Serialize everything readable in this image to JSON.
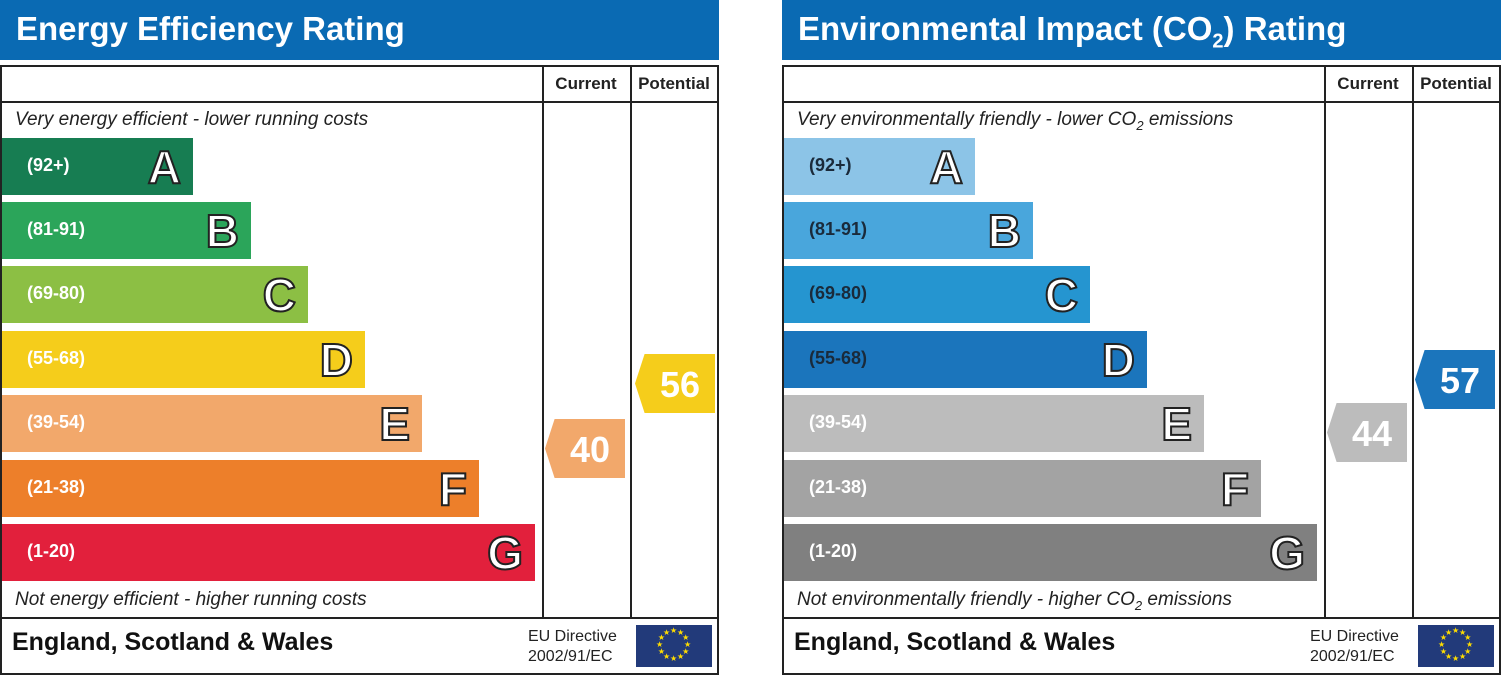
{
  "chart_data": [
    {
      "type": "bar",
      "title": "Energy Efficiency Rating",
      "columns": [
        "Current",
        "Potential"
      ],
      "top_note": "Very energy efficient - lower running costs",
      "bottom_note": "Not energy efficient - higher running costs",
      "bands": [
        {
          "letter": "A",
          "range": "(92+)",
          "color": "#177d52"
        },
        {
          "letter": "B",
          "range": "(81-91)",
          "color": "#2ba55a"
        },
        {
          "letter": "C",
          "range": "(69-80)",
          "color": "#8cbf44"
        },
        {
          "letter": "D",
          "range": "(55-68)",
          "color": "#f5cd1b"
        },
        {
          "letter": "E",
          "range": "(39-54)",
          "color": "#f2a86b"
        },
        {
          "letter": "F",
          "range": "(21-38)",
          "color": "#ed7f2a"
        },
        {
          "letter": "G",
          "range": "(1-20)",
          "color": "#e2203c"
        }
      ],
      "current": {
        "value": "40",
        "color": "#f2a86b"
      },
      "potential": {
        "value": "56",
        "color": "#f5cd1b"
      },
      "footer": "England, Scotland & Wales",
      "directive": [
        "EU Directive",
        "2002/91/EC"
      ]
    },
    {
      "type": "bar",
      "title": "Environmental Impact (CO",
      "title_sub": "2",
      "title_end": ") Rating",
      "columns": [
        "Current",
        "Potential"
      ],
      "top_note": "Very environmentally friendly - lower CO",
      "top_note_end": " emissions",
      "bottom_note": "Not environmentally friendly - higher CO",
      "bottom_note_end": " emissions",
      "sub2": "2",
      "bands": [
        {
          "letter": "A",
          "range": "(92+)",
          "color": "#8cc4e7"
        },
        {
          "letter": "B",
          "range": "(81-91)",
          "color": "#49a6dc"
        },
        {
          "letter": "C",
          "range": "(69-80)",
          "color": "#2595d0"
        },
        {
          "letter": "D",
          "range": "(55-68)",
          "color": "#1b75bc"
        },
        {
          "letter": "E",
          "range": "(39-54)",
          "color": "#bcbcbc"
        },
        {
          "letter": "F",
          "range": "(21-38)",
          "color": "#a3a3a3"
        },
        {
          "letter": "G",
          "range": "(1-20)",
          "color": "#808080"
        }
      ],
      "current": {
        "value": "44",
        "color": "#bcbcbc"
      },
      "potential": {
        "value": "57",
        "color": "#1b75bc"
      },
      "footer": "England, Scotland & Wales",
      "directive": [
        "EU Directive",
        "2002/91/EC"
      ]
    }
  ]
}
